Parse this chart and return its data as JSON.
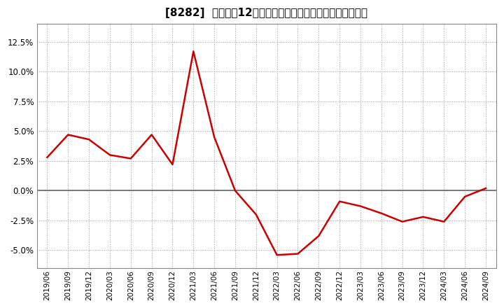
{
  "title": "[8282]  売上高の12か月移動合計の対前年同期増減率の推移",
  "x_labels": [
    "2019/06",
    "2019/09",
    "2019/12",
    "2020/03",
    "2020/06",
    "2020/09",
    "2020/12",
    "2021/03",
    "2021/06",
    "2021/09",
    "2021/12",
    "2022/03",
    "2022/06",
    "2022/09",
    "2022/12",
    "2023/03",
    "2023/06",
    "2023/09",
    "2023/12",
    "2024/03",
    "2024/06",
    "2024/09"
  ],
  "y_values": [
    2.8,
    4.7,
    4.3,
    3.0,
    2.7,
    4.7,
    2.2,
    11.7,
    4.5,
    0.0,
    -2.0,
    -5.4,
    -5.3,
    -3.8,
    -0.9,
    -1.3,
    -1.9,
    -2.6,
    -2.2,
    -2.6,
    -0.5,
    0.2
  ],
  "line_color": "#cc0000",
  "background_color": "#ffffff",
  "plot_bg_color": "#ffffff",
  "grid_color": "#999999",
  "zero_line_color": "#666666",
  "border_color": "#888888",
  "ylim": [
    -6.5,
    14.0
  ],
  "yticks": [
    -5.0,
    -2.5,
    0.0,
    2.5,
    5.0,
    7.5,
    10.0,
    12.5
  ],
  "title_fontsize": 11,
  "tick_fontsize": 8.5,
  "xtick_fontsize": 7.5
}
